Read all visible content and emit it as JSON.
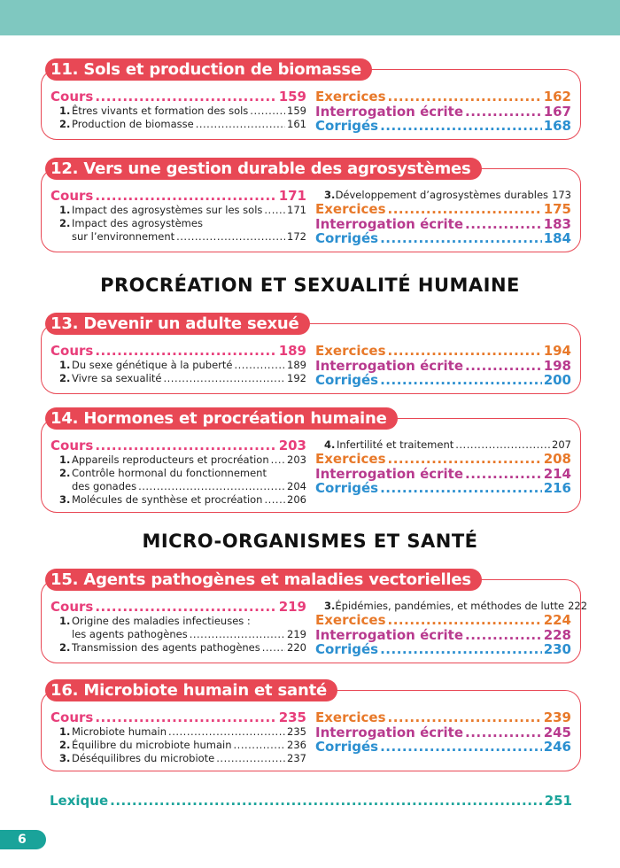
{
  "colors": {
    "top_bar": "#7fc8c0",
    "chapter_red": "#e84855",
    "cours": "#e83e7a",
    "exercices": "#e8792a",
    "interrogation": "#b83a8e",
    "corriges": "#2b8fd0",
    "lexique": "#1aa39a"
  },
  "sections": [
    "PROCRÉATION ET SEXUALITÉ HUMAINE",
    "MICRO-ORGANISMES ET SANTÉ"
  ],
  "chapters": [
    {
      "title": "11. Sols et production de biomasse",
      "left": [
        {
          "kind": "cours",
          "label": "Cours",
          "page": "159"
        },
        {
          "kind": "sub",
          "num": "1.",
          "label": "Êtres vivants et formation des sols",
          "page": "159"
        },
        {
          "kind": "sub",
          "num": "2.",
          "label": "Production de biomasse",
          "page": "161"
        }
      ],
      "right": [
        {
          "kind": "exercices",
          "label": "Exercices",
          "page": "162"
        },
        {
          "kind": "interro",
          "label": "Interrogation écrite",
          "page": "167"
        },
        {
          "kind": "corriges",
          "label": "Corrigés",
          "page": "168"
        }
      ]
    },
    {
      "title": "12. Vers une gestion durable des agrosystèmes",
      "left": [
        {
          "kind": "cours",
          "label": "Cours",
          "page": "171"
        },
        {
          "kind": "sub",
          "num": "1.",
          "label": "Impact des agrosystèmes sur les sols",
          "page": "171"
        },
        {
          "kind": "sub",
          "num": "2.",
          "label": "Impact des agrosystèmes",
          "cont": "sur l’environnement",
          "page": "172"
        }
      ],
      "right": [
        {
          "kind": "sub",
          "num": "3.",
          "label": "Développement d’agrosystèmes durables",
          "page": "173"
        },
        {
          "kind": "exercices",
          "label": "Exercices",
          "page": "175"
        },
        {
          "kind": "interro",
          "label": "Interrogation écrite",
          "page": "183"
        },
        {
          "kind": "corriges",
          "label": "Corrigés",
          "page": "184"
        }
      ]
    },
    {
      "title": "13. Devenir un adulte sexué",
      "left": [
        {
          "kind": "cours",
          "label": "Cours",
          "page": "189"
        },
        {
          "kind": "sub",
          "num": "1.",
          "label": "Du sexe génétique à la puberté",
          "page": "189"
        },
        {
          "kind": "sub",
          "num": "2.",
          "label": "Vivre sa sexualité",
          "page": "192"
        }
      ],
      "right": [
        {
          "kind": "exercices",
          "label": "Exercices",
          "page": "194"
        },
        {
          "kind": "interro",
          "label": "Interrogation écrite",
          "page": "198"
        },
        {
          "kind": "corriges",
          "label": "Corrigés",
          "page": "200"
        }
      ]
    },
    {
      "title": "14. Hormones et procréation humaine",
      "left": [
        {
          "kind": "cours",
          "label": "Cours",
          "page": "203"
        },
        {
          "kind": "sub",
          "num": "1.",
          "label": "Appareils reproducteurs et procréation",
          "page": "203"
        },
        {
          "kind": "sub",
          "num": "2.",
          "label": "Contrôle hormonal du fonctionnement",
          "cont": "des gonades",
          "page": "204"
        },
        {
          "kind": "sub",
          "num": "3.",
          "label": "Molécules de synthèse et procréation",
          "page": "206"
        }
      ],
      "right": [
        {
          "kind": "sub",
          "num": "4.",
          "label": "Infertilité et traitement",
          "page": "207"
        },
        {
          "kind": "exercices",
          "label": "Exercices",
          "page": "208"
        },
        {
          "kind": "interro",
          "label": "Interrogation écrite",
          "page": "214"
        },
        {
          "kind": "corriges",
          "label": "Corrigés",
          "page": "216"
        }
      ]
    },
    {
      "title": "15. Agents pathogènes et maladies vectorielles",
      "left": [
        {
          "kind": "cours",
          "label": "Cours",
          "page": "219"
        },
        {
          "kind": "sub",
          "num": "1.",
          "label": "Origine des maladies infectieuses :",
          "cont": "les agents pathogènes",
          "page": "219"
        },
        {
          "kind": "sub",
          "num": "2.",
          "label": "Transmission des agents pathogènes",
          "page": "220"
        }
      ],
      "right": [
        {
          "kind": "sub",
          "num": "3.",
          "label": "Épidémies, pandémies, et méthodes de lutte",
          "page": "222"
        },
        {
          "kind": "exercices",
          "label": "Exercices",
          "page": "224"
        },
        {
          "kind": "interro",
          "label": "Interrogation écrite",
          "page": "228"
        },
        {
          "kind": "corriges",
          "label": "Corrigés",
          "page": "230"
        }
      ]
    },
    {
      "title": "16. Microbiote humain et santé",
      "left": [
        {
          "kind": "cours",
          "label": "Cours",
          "page": "235"
        },
        {
          "kind": "sub",
          "num": "1.",
          "label": "Microbiote humain",
          "page": "235"
        },
        {
          "kind": "sub",
          "num": "2.",
          "label": "Équilibre du microbiote humain",
          "page": "236"
        },
        {
          "kind": "sub",
          "num": "3.",
          "label": "Déséquilibres du microbiote",
          "page": "237"
        }
      ],
      "right": [
        {
          "kind": "exercices",
          "label": "Exercices",
          "page": "239"
        },
        {
          "kind": "interro",
          "label": "Interrogation écrite",
          "page": "245"
        },
        {
          "kind": "corriges",
          "label": "Corrigés",
          "page": "246"
        }
      ]
    }
  ],
  "lexique": {
    "label": "Lexique",
    "page": "251"
  },
  "page_number": "6"
}
